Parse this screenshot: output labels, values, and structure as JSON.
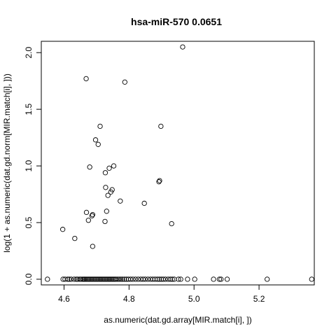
{
  "chart_data": {
    "type": "scatter",
    "title": "hsa-miR-570   0.0651",
    "xlabel": "as.numeric(dat.gd.array[MIR.match[i], ])",
    "ylabel": "log(1 + as.numeric(dat.gd.norm[MIR.match[i], ]))",
    "xlim": [
      4.53,
      5.37
    ],
    "ylim": [
      -0.05,
      2.1
    ],
    "x_ticks": [
      4.6,
      4.8,
      5.0,
      5.2
    ],
    "x_tick_labels": [
      "4.6",
      "4.8",
      "5.0",
      "5.2"
    ],
    "y_ticks": [
      0.0,
      0.5,
      1.0,
      1.5,
      2.0
    ],
    "y_tick_labels": [
      "0.0",
      "0.5",
      "1.0",
      "1.5",
      "2.0"
    ],
    "grid": false,
    "marker": "open-circle",
    "points": [
      [
        4.549,
        0.0
      ],
      [
        4.597,
        0.0
      ],
      [
        4.603,
        0.0
      ],
      [
        4.611,
        0.0
      ],
      [
        4.616,
        0.0
      ],
      [
        4.622,
        0.0
      ],
      [
        4.631,
        0.0
      ],
      [
        4.638,
        0.0
      ],
      [
        4.642,
        0.0
      ],
      [
        4.648,
        0.0
      ],
      [
        4.652,
        0.0
      ],
      [
        4.657,
        0.0
      ],
      [
        4.661,
        0.0
      ],
      [
        4.664,
        0.0
      ],
      [
        4.668,
        0.0
      ],
      [
        4.672,
        0.0
      ],
      [
        4.676,
        0.0
      ],
      [
        4.68,
        0.0
      ],
      [
        4.684,
        0.0
      ],
      [
        4.688,
        0.0
      ],
      [
        4.692,
        0.0
      ],
      [
        4.696,
        0.0
      ],
      [
        4.7,
        0.0
      ],
      [
        4.704,
        0.0
      ],
      [
        4.708,
        0.0
      ],
      [
        4.712,
        0.0
      ],
      [
        4.716,
        0.0
      ],
      [
        4.72,
        0.0
      ],
      [
        4.724,
        0.0
      ],
      [
        4.728,
        0.0
      ],
      [
        4.732,
        0.0
      ],
      [
        4.736,
        0.0
      ],
      [
        4.74,
        0.0
      ],
      [
        4.744,
        0.0
      ],
      [
        4.748,
        0.0
      ],
      [
        4.752,
        0.0
      ],
      [
        4.756,
        0.0
      ],
      [
        4.76,
        0.0
      ],
      [
        4.765,
        0.0
      ],
      [
        4.77,
        0.0
      ],
      [
        4.775,
        0.0
      ],
      [
        4.78,
        0.0
      ],
      [
        4.786,
        0.0
      ],
      [
        4.792,
        0.0
      ],
      [
        4.798,
        0.0
      ],
      [
        4.805,
        0.0
      ],
      [
        4.812,
        0.0
      ],
      [
        4.82,
        0.0
      ],
      [
        4.828,
        0.0
      ],
      [
        4.836,
        0.0
      ],
      [
        4.843,
        0.0
      ],
      [
        4.85,
        0.0
      ],
      [
        4.858,
        0.0
      ],
      [
        4.866,
        0.0
      ],
      [
        4.873,
        0.0
      ],
      [
        4.88,
        0.0
      ],
      [
        4.887,
        0.0
      ],
      [
        4.893,
        0.0
      ],
      [
        4.899,
        0.0
      ],
      [
        4.905,
        0.0
      ],
      [
        4.912,
        0.0
      ],
      [
        4.92,
        0.0
      ],
      [
        4.927,
        0.0
      ],
      [
        4.933,
        0.0
      ],
      [
        4.939,
        0.0
      ],
      [
        4.952,
        0.0
      ],
      [
        4.959,
        0.0
      ],
      [
        4.98,
        0.0
      ],
      [
        5.002,
        0.0
      ],
      [
        5.06,
        0.0
      ],
      [
        5.078,
        0.0
      ],
      [
        5.083,
        0.0
      ],
      [
        5.102,
        0.0
      ],
      [
        5.225,
        0.0
      ],
      [
        5.362,
        0.0
      ],
      [
        4.596,
        0.44
      ],
      [
        4.633,
        0.36
      ],
      [
        4.668,
        1.77
      ],
      [
        4.669,
        0.59
      ],
      [
        4.675,
        0.52
      ],
      [
        4.679,
        0.99
      ],
      [
        4.686,
        0.56
      ],
      [
        4.688,
        0.57
      ],
      [
        4.688,
        0.29
      ],
      [
        4.697,
        1.23
      ],
      [
        4.705,
        1.19
      ],
      [
        4.711,
        1.35
      ],
      [
        4.726,
        0.51
      ],
      [
        4.727,
        0.94
      ],
      [
        4.728,
        0.81
      ],
      [
        4.731,
        0.6
      ],
      [
        4.735,
        0.74
      ],
      [
        4.739,
        0.98
      ],
      [
        4.744,
        0.77
      ],
      [
        4.748,
        0.79
      ],
      [
        4.753,
        1.0
      ],
      [
        4.773,
        0.69
      ],
      [
        4.787,
        1.74
      ],
      [
        4.847,
        0.67
      ],
      [
        4.892,
        0.86
      ],
      [
        4.894,
        0.87
      ],
      [
        4.898,
        1.35
      ],
      [
        4.931,
        0.49
      ],
      [
        4.965,
        2.05
      ]
    ]
  }
}
